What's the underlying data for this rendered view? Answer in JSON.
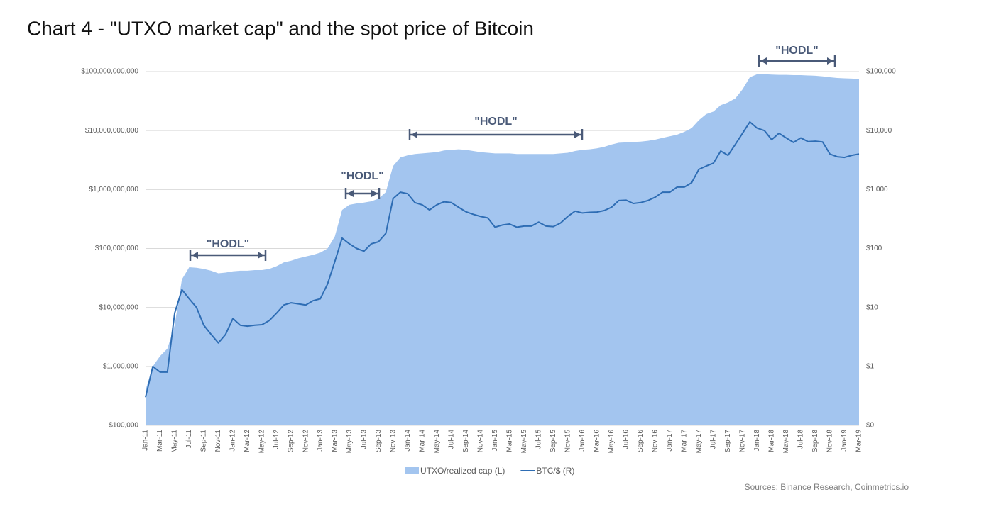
{
  "chart_data": {
    "type": "line",
    "title": "Chart 4 - \"UTXO market cap\" and the spot price of Bitcoin",
    "source": "Sources: Binance Research, Coinmetrics.io",
    "annotations": [
      "\"HODL\"",
      "\"HODL\"",
      "\"HODL\"",
      "\"HODL\""
    ],
    "log_scale": true,
    "grid": true,
    "legend": "bottom",
    "categories": [
      "Jan-11",
      null,
      "Mar-11",
      null,
      "May-11",
      null,
      "Jul-11",
      null,
      "Sep-11",
      null,
      "Nov-11",
      null,
      "Jan-12",
      null,
      "Mar-12",
      null,
      "May-12",
      null,
      "Jul-12",
      null,
      "Sep-12",
      null,
      "Nov-12",
      null,
      "Jan-13",
      null,
      "Mar-13",
      null,
      "May-13",
      null,
      "Jul-13",
      null,
      "Sep-13",
      null,
      "Nov-13",
      null,
      "Jan-14",
      null,
      "Mar-14",
      null,
      "May-14",
      null,
      "Jul-14",
      null,
      "Sep-14",
      null,
      "Nov-14",
      null,
      "Jan-15",
      null,
      "Mar-15",
      null,
      "May-15",
      null,
      "Jul-15",
      null,
      "Sep-15",
      null,
      "Nov-15",
      null,
      "Jan-16",
      null,
      "Mar-16",
      null,
      "May-16",
      null,
      "Jul-16",
      null,
      "Sep-16",
      null,
      "Nov-16",
      null,
      "Jan-17",
      null,
      "Mar-17",
      null,
      "May-17",
      null,
      "Jul-17",
      null,
      "Sep-17",
      null,
      "Nov-17",
      null,
      "Jan-18",
      null,
      "Mar-18",
      null,
      "May-18",
      null,
      "Jul-18",
      null,
      "Sep-18",
      null,
      "Nov-18",
      null,
      "Jan-19",
      null,
      "Mar-19"
    ],
    "ylim": [
      100000,
      100000000000
    ],
    "yticks": [
      {
        "value": 100000,
        "label": "$100,000"
      },
      {
        "value": 1000000,
        "label": "$1,000,000"
      },
      {
        "value": 10000000,
        "label": "$10,000,000"
      },
      {
        "value": 100000000,
        "label": "$100,000,000"
      },
      {
        "value": 1000000000,
        "label": "$1,000,000,000"
      },
      {
        "value": 10000000000,
        "label": "$10,000,000,000"
      },
      {
        "value": 100000000000,
        "label": "$100,000,000,000"
      }
    ],
    "y2lim": [
      0.1,
      100000
    ],
    "y2ticks": [
      {
        "value": 0.1,
        "label": "$0"
      },
      {
        "value": 1,
        "label": "$1"
      },
      {
        "value": 10,
        "label": "$10"
      },
      {
        "value": 100,
        "label": "$100"
      },
      {
        "value": 1000,
        "label": "$1,000"
      },
      {
        "value": 10000,
        "label": "$10,000"
      },
      {
        "value": 100000,
        "label": "$100,000"
      }
    ],
    "series": [
      {
        "name": "UTXO/realized cap (L)",
        "style": "area",
        "color": "#a3c5ef",
        "values": [
          400000.0,
          1000000.0,
          1500000.0,
          2000000.0,
          5000000.0,
          30000000.0,
          48000000.0,
          47000000.0,
          45000000.0,
          42000000.0,
          38000000.0,
          39000000.0,
          41000000.0,
          42000000.0,
          42000000.0,
          43000000.0,
          43000000.0,
          45000000.0,
          50000000.0,
          58000000.0,
          62000000.0,
          68000000.0,
          73000000.0,
          78000000.0,
          85000000.0,
          100000000.0,
          160000000.0,
          450000000.0,
          550000000.0,
          580000000.0,
          600000000.0,
          630000000.0,
          700000000.0,
          900000000.0,
          2500000000.0,
          3500000000.0,
          3800000000.0,
          4000000000.0,
          4100000000.0,
          4200000000.0,
          4300000000.0,
          4600000000.0,
          4700000000.0,
          4800000000.0,
          4700000000.0,
          4500000000.0,
          4300000000.0,
          4200000000.0,
          4100000000.0,
          4100000000.0,
          4100000000.0,
          4000000000.0,
          4000000000.0,
          4000000000.0,
          4000000000.0,
          4000000000.0,
          4000000000.0,
          4100000000.0,
          4200000000.0,
          4500000000.0,
          4700000000.0,
          4800000000.0,
          5000000000.0,
          5300000000.0,
          5800000000.0,
          6200000000.0,
          6300000000.0,
          6400000000.0,
          6500000000.0,
          6700000000.0,
          7000000000.0,
          7500000000.0,
          8000000000.0,
          8500000000.0,
          9500000000.0,
          11000000000.0,
          15000000000.0,
          19000000000.0,
          21000000000.0,
          27000000000.0,
          30000000000.0,
          35000000000.0,
          50000000000.0,
          80000000000.0,
          90000000000.0,
          90000000000.0,
          89000000000.0,
          88000000000.0,
          88000000000.0,
          87000000000.0,
          87000000000.0,
          86000000000.0,
          85000000000.0,
          83000000000.0,
          80000000000.0,
          78000000000.0,
          77000000000.0,
          76000000000.0,
          75000000000.0
        ]
      },
      {
        "name": "BTC/$ (R)",
        "style": "line",
        "axis": "y2",
        "color": "#2e6db4",
        "values": [
          0.3,
          1,
          0.8,
          0.8,
          8,
          20,
          14,
          10,
          5,
          3.5,
          2.5,
          3.5,
          6.5,
          5,
          4.8,
          5,
          5.1,
          6,
          8,
          11,
          12,
          11.5,
          11,
          13,
          14,
          25,
          60,
          150,
          120,
          100,
          90,
          120,
          130,
          180,
          700,
          900,
          850,
          600,
          550,
          450,
          550,
          620,
          600,
          500,
          420,
          380,
          350,
          330,
          230,
          250,
          260,
          230,
          240,
          240,
          280,
          240,
          235,
          270,
          350,
          430,
          400,
          410,
          415,
          440,
          500,
          650,
          660,
          580,
          600,
          650,
          740,
          900,
          900,
          1100,
          1100,
          1300,
          2200,
          2500,
          2800,
          4500,
          3800,
          5800,
          9000,
          14000,
          11000,
          10000,
          7000,
          9000,
          7500,
          6300,
          7500,
          6500,
          6600,
          6400,
          4000,
          3600,
          3500,
          3800,
          4000
        ]
      }
    ]
  }
}
